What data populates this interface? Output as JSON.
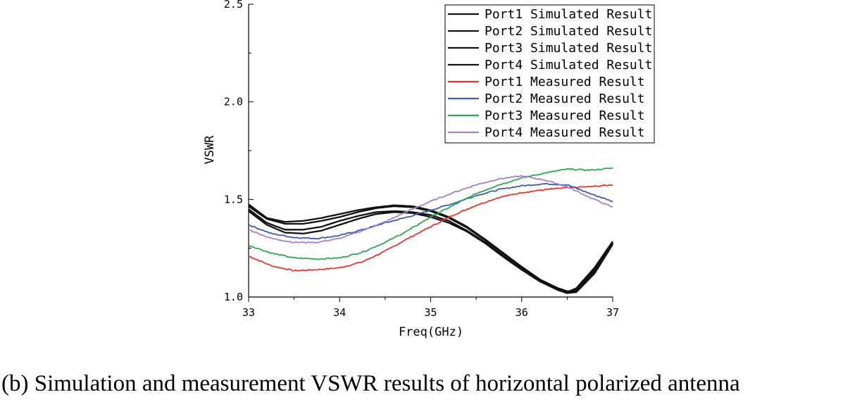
{
  "caption": "(b) Simulation and measurement VSWR results of horizontal polarized antenna",
  "chart_data": {
    "type": "line",
    "xlabel": "Freq(GHz)",
    "ylabel": "VSWR",
    "xlim": [
      33,
      37
    ],
    "ylim": [
      1.0,
      2.5
    ],
    "xticks": [
      "33",
      "34",
      "35",
      "36",
      "37"
    ],
    "yticks": [
      "1.0",
      "1.5",
      "2.0",
      "2.5"
    ],
    "legend_position": "top-right",
    "series": [
      {
        "name": "Port1 Simulated Result",
        "color": "#111111",
        "x": [
          33,
          33.2,
          33.4,
          33.6,
          33.8,
          34,
          34.2,
          34.4,
          34.6,
          34.8,
          35,
          35.2,
          35.4,
          35.6,
          35.8,
          36,
          36.2,
          36.4,
          36.5,
          36.6,
          36.8,
          37
        ],
        "y": [
          1.45,
          1.38,
          1.345,
          1.345,
          1.36,
          1.39,
          1.415,
          1.435,
          1.44,
          1.435,
          1.42,
          1.39,
          1.34,
          1.28,
          1.21,
          1.14,
          1.08,
          1.035,
          1.02,
          1.04,
          1.14,
          1.28
        ]
      },
      {
        "name": "Port2 Simulated Result",
        "color": "#111111",
        "x": [
          33,
          33.2,
          33.4,
          33.6,
          33.8,
          34,
          34.2,
          34.4,
          34.6,
          34.8,
          35,
          35.2,
          35.4,
          35.6,
          35.8,
          36,
          36.2,
          36.4,
          36.5,
          36.6,
          36.8,
          37
        ],
        "y": [
          1.465,
          1.4,
          1.375,
          1.375,
          1.39,
          1.41,
          1.435,
          1.455,
          1.465,
          1.46,
          1.44,
          1.405,
          1.355,
          1.29,
          1.22,
          1.15,
          1.085,
          1.04,
          1.025,
          1.045,
          1.15,
          1.285
        ]
      },
      {
        "name": "Port3 Simulated Result",
        "color": "#111111",
        "x": [
          33,
          33.2,
          33.4,
          33.6,
          33.8,
          34,
          34.2,
          34.4,
          34.6,
          34.8,
          35,
          35.2,
          35.4,
          35.6,
          35.8,
          36,
          36.2,
          36.4,
          36.5,
          36.6,
          36.8,
          37
        ],
        "y": [
          1.475,
          1.405,
          1.385,
          1.39,
          1.405,
          1.425,
          1.445,
          1.46,
          1.47,
          1.465,
          1.445,
          1.41,
          1.36,
          1.295,
          1.225,
          1.155,
          1.09,
          1.045,
          1.03,
          1.03,
          1.13,
          1.275
        ]
      },
      {
        "name": "Port4 Simulated Result",
        "color": "#111111",
        "x": [
          33,
          33.2,
          33.4,
          33.6,
          33.8,
          34,
          34.2,
          34.4,
          34.6,
          34.8,
          35,
          35.2,
          35.4,
          35.6,
          35.8,
          36,
          36.2,
          36.4,
          36.5,
          36.6,
          36.8,
          37
        ],
        "y": [
          1.44,
          1.37,
          1.33,
          1.325,
          1.34,
          1.37,
          1.4,
          1.425,
          1.435,
          1.43,
          1.41,
          1.38,
          1.335,
          1.275,
          1.205,
          1.14,
          1.08,
          1.04,
          1.02,
          1.025,
          1.12,
          1.27
        ]
      },
      {
        "name": "Port1 Measured Result",
        "color": "#e8382c",
        "x": [
          33,
          33.25,
          33.5,
          33.75,
          34,
          34.25,
          34.5,
          34.75,
          35,
          35.25,
          35.5,
          35.75,
          36,
          36.25,
          36.5,
          36.75,
          37
        ],
        "y": [
          1.21,
          1.16,
          1.135,
          1.14,
          1.15,
          1.18,
          1.235,
          1.3,
          1.36,
          1.42,
          1.47,
          1.51,
          1.535,
          1.55,
          1.56,
          1.565,
          1.575
        ]
      },
      {
        "name": "Port2 Measured Result",
        "color": "#3a5fb0",
        "x": [
          33,
          33.25,
          33.5,
          33.75,
          34,
          34.25,
          34.5,
          34.75,
          35,
          35.25,
          35.5,
          35.75,
          36,
          36.25,
          36.5,
          36.75,
          37
        ],
        "y": [
          1.37,
          1.325,
          1.305,
          1.3,
          1.315,
          1.345,
          1.38,
          1.41,
          1.445,
          1.48,
          1.52,
          1.55,
          1.57,
          1.58,
          1.575,
          1.53,
          1.49
        ]
      },
      {
        "name": "Port3 Measured Result",
        "color": "#2ea84f",
        "x": [
          33,
          33.25,
          33.5,
          33.75,
          34,
          34.25,
          34.5,
          34.75,
          35,
          35.25,
          35.5,
          35.75,
          36,
          36.25,
          36.5,
          36.75,
          37
        ],
        "y": [
          1.265,
          1.225,
          1.2,
          1.195,
          1.2,
          1.23,
          1.28,
          1.34,
          1.41,
          1.47,
          1.53,
          1.575,
          1.61,
          1.635,
          1.655,
          1.65,
          1.66
        ]
      },
      {
        "name": "Port4 Measured Result",
        "color": "#a57fc9",
        "x": [
          33,
          33.25,
          33.5,
          33.75,
          34,
          34.25,
          34.5,
          34.75,
          35,
          35.25,
          35.5,
          35.75,
          36,
          36.25,
          36.5,
          36.75,
          37
        ],
        "y": [
          1.345,
          1.3,
          1.28,
          1.28,
          1.3,
          1.34,
          1.385,
          1.44,
          1.49,
          1.535,
          1.575,
          1.605,
          1.62,
          1.6,
          1.565,
          1.51,
          1.46
        ]
      }
    ]
  }
}
